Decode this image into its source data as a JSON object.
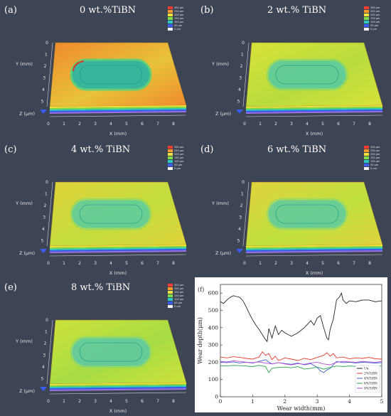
{
  "panels": [
    {
      "letter": "(a)",
      "title": "0 wt.%TiBN",
      "surface": "#f08a2c",
      "surface2": "#e8c23a",
      "track": "#2fb6a2",
      "rim": "#5fd07a"
    },
    {
      "letter": "(b)",
      "title": "2 wt.% TiBN",
      "surface": "#d9e23a",
      "surface2": "#b8dc3c",
      "track": "#45c8b4",
      "rim": "#8ad86a"
    },
    {
      "letter": "(c)",
      "title": "4 wt.% TiBN",
      "surface": "#dfd23a",
      "surface2": "#c4dd3d",
      "track": "#48cbb0",
      "rim": "#93d86a"
    },
    {
      "letter": "(d)",
      "title": "6 wt.% TiBN",
      "surface": "#e2d23c",
      "surface2": "#bfe03e",
      "track": "#4cc9b0",
      "rim": "#95d86c"
    },
    {
      "letter": "(e)",
      "title": "8 wt.% TiBN",
      "surface": "#cfe23a",
      "surface2": "#a6dc44",
      "track": "#4ec6b6",
      "rim": "#8cd870"
    }
  ],
  "axes3d": {
    "x_label": "X (mm)",
    "y_label": "Y (mm)",
    "z_label": "Z (μm)",
    "x_ticks": [
      "0",
      "1",
      "2",
      "3",
      "4",
      "5",
      "6",
      "7",
      "8"
    ],
    "y_ticks": [
      "0",
      "1",
      "2",
      "3",
      "4",
      "5"
    ]
  },
  "legend3d": [
    {
      "label": "300 μm",
      "color": "#ff3b2f"
    },
    {
      "label": "250 μm",
      "color": "#ff9a2a"
    },
    {
      "label": "200 μm",
      "color": "#f3e23a"
    },
    {
      "label": "150 μm",
      "color": "#7fdc4a"
    },
    {
      "label": "100 μm",
      "color": "#2ec9c0"
    },
    {
      "label": "50 μm",
      "color": "#3a5cf0"
    },
    {
      "label": "0 μm",
      "color": "#f2f2f2"
    }
  ],
  "chart_data": {
    "type": "line",
    "panel_letter": "(f)",
    "xlabel": "Wear width(mm)",
    "ylabel": "Wear depth(μm)",
    "xlim": [
      0,
      5
    ],
    "ylim": [
      0,
      650
    ],
    "xticks": [
      0,
      1,
      2,
      3,
      4,
      5
    ],
    "yticks": [
      0,
      100,
      200,
      300,
      400,
      500,
      600
    ],
    "legend_position": "bottom-right",
    "series": [
      {
        "name": "Un",
        "color": "#222222",
        "x": [
          0,
          0.1,
          0.2,
          0.3,
          0.4,
          0.5,
          0.6,
          0.7,
          0.8,
          0.9,
          1.0,
          1.1,
          1.2,
          1.3,
          1.4,
          1.45,
          1.5,
          1.6,
          1.7,
          1.8,
          1.9,
          2.0,
          2.1,
          2.2,
          2.3,
          2.4,
          2.5,
          2.6,
          2.7,
          2.8,
          2.9,
          3.0,
          3.1,
          3.2,
          3.3,
          3.35,
          3.4,
          3.5,
          3.6,
          3.7,
          3.75,
          3.8,
          3.9,
          4.0,
          4.2,
          4.4,
          4.6,
          4.8,
          5.0
        ],
        "y": [
          550,
          540,
          560,
          575,
          585,
          580,
          575,
          555,
          520,
          480,
          445,
          415,
          390,
          360,
          330,
          320,
          395,
          340,
          410,
          360,
          385,
          370,
          360,
          350,
          360,
          370,
          385,
          400,
          420,
          440,
          415,
          455,
          470,
          400,
          340,
          330,
          390,
          450,
          560,
          580,
          600,
          560,
          540,
          555,
          550,
          560,
          560,
          550,
          555
        ]
      },
      {
        "name": "2%TiBN",
        "color": "#e53a2e",
        "x": [
          0,
          0.2,
          0.4,
          0.6,
          0.8,
          1.0,
          1.2,
          1.3,
          1.4,
          1.5,
          1.6,
          1.7,
          1.8,
          2.0,
          2.2,
          2.4,
          2.6,
          2.8,
          3.0,
          3.2,
          3.3,
          3.4,
          3.5,
          3.6,
          3.8,
          4.0,
          4.2,
          4.4,
          4.6,
          4.8,
          5.0
        ],
        "y": [
          230,
          225,
          232,
          228,
          222,
          218,
          230,
          260,
          240,
          250,
          215,
          235,
          210,
          225,
          218,
          210,
          222,
          215,
          228,
          240,
          255,
          235,
          250,
          225,
          230,
          220,
          225,
          222,
          228,
          220,
          218
        ]
      },
      {
        "name": "4%TiBN",
        "color": "#3b5bd6",
        "x": [
          0,
          0.2,
          0.4,
          0.6,
          0.8,
          1.0,
          1.2,
          1.4,
          1.5,
          1.6,
          1.8,
          2.0,
          2.2,
          2.4,
          2.6,
          2.8,
          3.0,
          3.1,
          3.2,
          3.3,
          3.4,
          3.5,
          3.6,
          3.8,
          4.0,
          4.2,
          4.4,
          4.6,
          4.8,
          5.0
        ],
        "y": [
          200,
          198,
          202,
          196,
          200,
          195,
          205,
          215,
          200,
          190,
          198,
          192,
          188,
          195,
          185,
          192,
          170,
          150,
          140,
          155,
          165,
          185,
          205,
          198,
          200,
          196,
          200,
          198,
          195,
          198
        ]
      },
      {
        "name": "6%TiBN",
        "color": "#2aa44a",
        "x": [
          0,
          0.2,
          0.4,
          0.6,
          0.8,
          1.0,
          1.2,
          1.4,
          1.5,
          1.6,
          1.8,
          2.0,
          2.2,
          2.4,
          2.6,
          2.8,
          3.0,
          3.2,
          3.4,
          3.6,
          3.8,
          4.0,
          4.2,
          4.4,
          4.6,
          4.8,
          5.0
        ],
        "y": [
          180,
          178,
          182,
          180,
          178,
          175,
          182,
          175,
          140,
          165,
          170,
          172,
          168,
          175,
          160,
          165,
          172,
          160,
          170,
          178,
          175,
          178,
          176,
          180,
          178,
          176,
          178
        ]
      },
      {
        "name": "8%TiBN",
        "color": "#b44ad0",
        "x": [
          0,
          0.2,
          0.4,
          0.6,
          0.8,
          1.0,
          1.2,
          1.4,
          1.6,
          1.8,
          2.0,
          2.2,
          2.4,
          2.6,
          2.8,
          3.0,
          3.2,
          3.4,
          3.6,
          3.8,
          4.0,
          4.2,
          4.4,
          4.6,
          4.8,
          5.0
        ],
        "y": [
          205,
          202,
          208,
          205,
          200,
          198,
          202,
          195,
          190,
          198,
          190,
          185,
          192,
          188,
          195,
          200,
          190,
          185,
          200,
          205,
          202,
          200,
          205,
          202,
          200,
          204
        ]
      }
    ]
  }
}
